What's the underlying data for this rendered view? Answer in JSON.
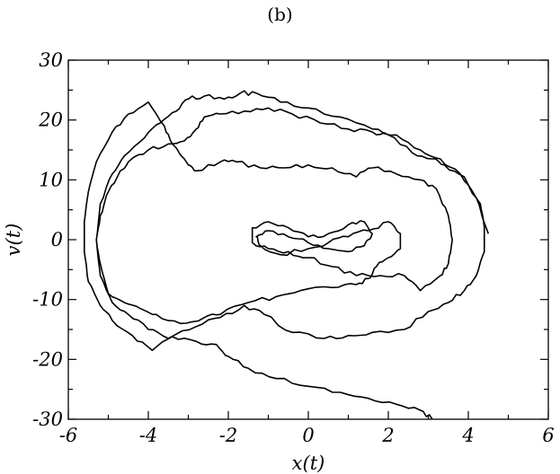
{
  "figure": {
    "panel_label": "(b)"
  },
  "chart_data": {
    "type": "line",
    "xlabel": "x(t)",
    "ylabel": "v(t)",
    "xlim": [
      -6,
      6
    ],
    "ylim": [
      -30,
      30
    ],
    "x_ticks": [
      -6,
      -4,
      -2,
      0,
      2,
      4,
      6
    ],
    "x_tick_labels": [
      "-6",
      "-4",
      "-2",
      "0",
      "2",
      "4",
      "6"
    ],
    "y_ticks": [
      -30,
      -20,
      -10,
      0,
      10,
      20,
      30
    ],
    "y_tick_labels": [
      "-30",
      "-20",
      "-10",
      "0",
      "10",
      "20",
      "30"
    ],
    "grid": false,
    "line_color": "#000000",
    "series": [
      {
        "points": [
          [
            3.1,
            -30
          ],
          [
            2.8,
            -28.5
          ],
          [
            2.2,
            -27.5
          ],
          [
            1.5,
            -26.5
          ],
          [
            0.8,
            -25.5
          ],
          [
            0.0,
            -24.5
          ],
          [
            -0.8,
            -23.2
          ],
          [
            -1.5,
            -21.5
          ],
          [
            -2.0,
            -19.5
          ],
          [
            -2.3,
            -17.5
          ],
          [
            -2.8,
            -17.0
          ],
          [
            -3.4,
            -16.2
          ],
          [
            -3.9,
            -18.5
          ],
          [
            -4.4,
            -16.0
          ],
          [
            -4.9,
            -13.5
          ],
          [
            -5.2,
            -11.0
          ],
          [
            -5.5,
            -7.0
          ],
          [
            -5.6,
            -2.0
          ],
          [
            -5.6,
            3.0
          ],
          [
            -5.5,
            8.0
          ],
          [
            -5.3,
            13.0
          ],
          [
            -4.9,
            18.0
          ],
          [
            -4.5,
            21.0
          ],
          [
            -4.0,
            23.0
          ],
          [
            -3.6,
            19.0
          ],
          [
            -3.4,
            16.0
          ],
          [
            -3.0,
            12.5
          ],
          [
            -2.8,
            11.5
          ],
          [
            -2.2,
            13.0
          ],
          [
            -1.8,
            13.0
          ],
          [
            -1.2,
            12.0
          ],
          [
            -0.6,
            12.0
          ],
          [
            0.0,
            12.5
          ],
          [
            0.6,
            12.0
          ],
          [
            1.2,
            10.5
          ],
          [
            1.6,
            12.0
          ],
          [
            2.2,
            11.0
          ],
          [
            2.8,
            10.0
          ],
          [
            3.2,
            8.5
          ],
          [
            3.5,
            4.0
          ],
          [
            3.6,
            0.0
          ],
          [
            3.5,
            -4.0
          ],
          [
            3.3,
            -6.0
          ],
          [
            2.8,
            -8.5
          ],
          [
            2.4,
            -6.0
          ],
          [
            1.8,
            -6.0
          ],
          [
            1.2,
            -6.0
          ],
          [
            0.6,
            -4.5
          ],
          [
            0.0,
            -3.0
          ],
          [
            -0.5,
            -2.0
          ],
          [
            -1.0,
            -1.5
          ],
          [
            -1.4,
            -0.5
          ],
          [
            -1.4,
            2.0
          ],
          [
            -1.0,
            3.0
          ],
          [
            -0.5,
            2.0
          ],
          [
            0.0,
            0.5
          ],
          [
            0.5,
            1.0
          ],
          [
            1.0,
            2.5
          ],
          [
            1.4,
            3.0
          ],
          [
            1.6,
            1.0
          ],
          [
            1.4,
            -1.0
          ],
          [
            1.0,
            -2.0
          ],
          [
            0.5,
            -1.5
          ],
          [
            0.0,
            -0.5
          ],
          [
            -0.5,
            0.5
          ],
          [
            -1.0,
            1.5
          ],
          [
            -1.3,
            0.5
          ],
          [
            -1.2,
            -1.0
          ],
          [
            -0.7,
            -2.5
          ],
          [
            0.0,
            -1.5
          ],
          [
            0.5,
            -0.5
          ],
          [
            1.0,
            0.5
          ],
          [
            1.5,
            1.5
          ],
          [
            2.0,
            3.0
          ],
          [
            2.3,
            1.0
          ],
          [
            2.3,
            -1.5
          ],
          [
            2.0,
            -3.0
          ]
        ]
      },
      {
        "points": [
          [
            2.0,
            -3.0
          ],
          [
            1.7,
            -4.5
          ],
          [
            1.5,
            -6.5
          ],
          [
            1.2,
            -7.5
          ],
          [
            0.6,
            -8.0
          ],
          [
            -0.2,
            -8.5
          ],
          [
            -0.8,
            -9.5
          ],
          [
            -1.5,
            -10.5
          ],
          [
            -2.2,
            -12.5
          ],
          [
            -2.6,
            -13.0
          ],
          [
            -3.2,
            -14.0
          ],
          [
            -3.8,
            -12.5
          ],
          [
            -4.2,
            -11.5
          ],
          [
            -4.6,
            -10.5
          ],
          [
            -5.0,
            -9.0
          ],
          [
            -5.2,
            -4.0
          ],
          [
            -5.3,
            0.0
          ],
          [
            -5.2,
            4.0
          ],
          [
            -5.0,
            8.0
          ],
          [
            -4.7,
            11.5
          ],
          [
            -4.5,
            13.0
          ],
          [
            -4.0,
            15.0
          ],
          [
            -3.5,
            16.0
          ],
          [
            -3.1,
            16.5
          ],
          [
            -2.8,
            18.5
          ],
          [
            -2.6,
            20.5
          ],
          [
            -2.2,
            21.0
          ],
          [
            -1.6,
            21.5
          ],
          [
            -1.0,
            22.0
          ],
          [
            -0.4,
            21.0
          ],
          [
            0.3,
            19.5
          ],
          [
            1.0,
            18.5
          ],
          [
            1.6,
            18.0
          ],
          [
            2.0,
            17.5
          ],
          [
            2.6,
            14.5
          ],
          [
            3.1,
            13.5
          ],
          [
            3.4,
            12.5
          ],
          [
            3.9,
            10.5
          ],
          [
            4.3,
            6.0
          ],
          [
            4.4,
            2.0
          ],
          [
            4.4,
            -2.0
          ],
          [
            4.2,
            -6.0
          ],
          [
            3.9,
            -8.5
          ],
          [
            3.5,
            -10.5
          ],
          [
            3.0,
            -12.0
          ],
          [
            2.4,
            -15.0
          ],
          [
            1.6,
            -15.5
          ],
          [
            1.0,
            -16.0
          ],
          [
            0.4,
            -16.5
          ],
          [
            -0.4,
            -15.5
          ],
          [
            -1.1,
            -12.5
          ],
          [
            -1.6,
            -11.0
          ],
          [
            -2.2,
            -13.0
          ],
          [
            -2.8,
            -14.5
          ],
          [
            -3.5,
            -16.5
          ],
          [
            -4.0,
            -15.0
          ],
          [
            -4.5,
            -12.5
          ],
          [
            -4.9,
            -10.5
          ],
          [
            -5.2,
            -6.0
          ],
          [
            -5.3,
            0.0
          ],
          [
            -5.2,
            6.0
          ],
          [
            -4.9,
            11.0
          ],
          [
            -4.6,
            14.0
          ],
          [
            -4.1,
            17.0
          ],
          [
            -3.7,
            19.5
          ],
          [
            -3.3,
            21.5
          ],
          [
            -3.0,
            23.5
          ],
          [
            -2.6,
            24.0
          ],
          [
            -2.1,
            23.5
          ],
          [
            -1.7,
            24.5
          ],
          [
            -1.3,
            24.5
          ],
          [
            -0.7,
            23.0
          ],
          [
            0.0,
            22.0
          ],
          [
            0.8,
            20.5
          ],
          [
            1.6,
            18.5
          ],
          [
            2.2,
            17.5
          ],
          [
            2.8,
            15.0
          ],
          [
            3.3,
            13.5
          ],
          [
            3.8,
            11.0
          ],
          [
            4.2,
            7.0
          ],
          [
            4.5,
            1.0
          ]
        ]
      }
    ]
  }
}
